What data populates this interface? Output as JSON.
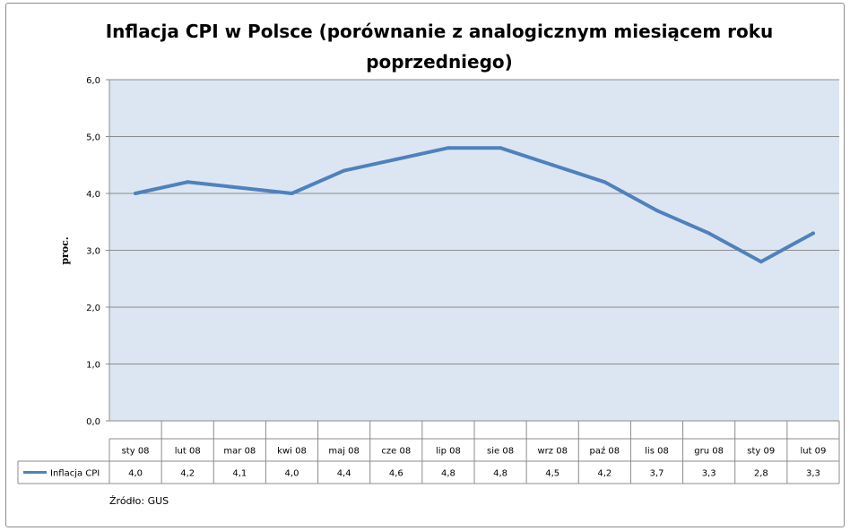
{
  "chart_data": {
    "type": "line",
    "title": "Inflacja CPI w Polsce (porównanie z analogicznym miesiącem roku poprzedniego)",
    "xlabel": "",
    "ylabel": "proc.",
    "ylim": [
      0,
      6
    ],
    "ytick_values": [
      0,
      1,
      2,
      3,
      4,
      5,
      6
    ],
    "ytick_labels": [
      "0,0",
      "1,0",
      "2,0",
      "3,0",
      "4,0",
      "5,0",
      "6,0"
    ],
    "grid": true,
    "legend_position": "data-table",
    "categories": [
      "sty 08",
      "lut 08",
      "mar 08",
      "kwi 08",
      "maj 08",
      "cze 08",
      "lip 08",
      "sie 08",
      "wrz 08",
      "paź 08",
      "lis 08",
      "gru 08",
      "sty 09",
      "lut 09"
    ],
    "series": [
      {
        "name": "Inflacja CPI",
        "color": "#4f81bd",
        "values": [
          4.0,
          4.2,
          4.1,
          4.0,
          4.4,
          4.6,
          4.8,
          4.8,
          4.5,
          4.2,
          3.7,
          3.3,
          2.8,
          3.3
        ],
        "value_labels": [
          "4,0",
          "4,2",
          "4,1",
          "4,0",
          "4,4",
          "4,6",
          "4,8",
          "4,8",
          "4,5",
          "4,2",
          "3,7",
          "3,3",
          "2,8",
          "3,3"
        ]
      }
    ]
  },
  "colors": {
    "plot_background": "#dce6f2",
    "gridline": "#8c8c8c",
    "line": "#4f81bd"
  },
  "source_note": "Źródło: GUS"
}
